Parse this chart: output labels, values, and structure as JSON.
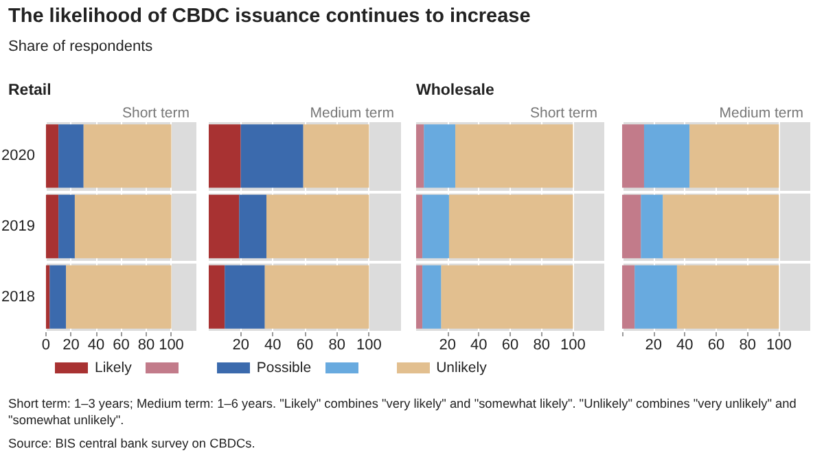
{
  "chart_data": [
    {
      "type": "other",
      "title": "The likelihood of CBDC issuance continues to increase",
      "subtitle": "Share of respondents",
      "annotations": [
        "Short term: 1–3 years; Medium term: 1–6 years. \"Likely\" combines \"very likely\" and \"somewhat likely\". \"Unlikely\" combines \"very unlikely\" and \"somewhat unlikely\".",
        "Source: BIS central bank survey on CBDCs."
      ]
    },
    {
      "type": "bar",
      "orientation": "horizontal",
      "stacked": true,
      "title": "Retail",
      "subtitle": "Short term",
      "categories": [
        "2020",
        "2019",
        "2018"
      ],
      "xlim": [
        0,
        120
      ],
      "xticks": [
        0,
        20,
        40,
        60,
        80,
        100
      ],
      "grid": true,
      "legend": "bottom",
      "series": [
        {
          "name": "Likely",
          "color": "#a83232",
          "values": [
            10,
            10,
            3
          ]
        },
        {
          "name": "Possible",
          "color": "#3b6aad",
          "values": [
            20,
            13,
            13
          ]
        },
        {
          "name": "Unlikely",
          "color": "#e2bf8f",
          "values": [
            70,
            77,
            84
          ]
        }
      ]
    },
    {
      "type": "bar",
      "orientation": "horizontal",
      "stacked": true,
      "subtitle": "Medium term",
      "categories": [
        "2020",
        "2019",
        "2018"
      ],
      "tick_labels": "x",
      "xlim": [
        0,
        120
      ],
      "xticks": [
        20,
        40,
        60,
        80,
        100
      ],
      "grid": true,
      "legend": "bottom",
      "series": [
        {
          "color": "#a83232",
          "values": [
            20,
            19,
            10
          ]
        },
        {
          "color": "#3b6aad",
          "values": [
            39,
            17,
            25
          ]
        },
        {
          "color": "#e2bf8f",
          "values": [
            41,
            64,
            65
          ]
        }
      ]
    },
    {
      "type": "bar",
      "orientation": "horizontal",
      "stacked": true,
      "title": "Wholesale",
      "subtitle": "Short term",
      "categories": [
        "2020",
        "2019",
        "2018"
      ],
      "tick_labels": "x",
      "xlim": [
        0,
        120
      ],
      "xticks": [
        20,
        40,
        60,
        80,
        100
      ],
      "grid": true,
      "legend": "bottom",
      "series": [
        {
          "color": "#c27b8a",
          "values": [
            5,
            4,
            4
          ]
        },
        {
          "color": "#68aadf",
          "values": [
            20,
            17,
            12
          ]
        },
        {
          "color": "#e2bf8f",
          "values": [
            75,
            79,
            84
          ]
        }
      ]
    },
    {
      "type": "bar",
      "orientation": "horizontal",
      "stacked": true,
      "subtitle": "Medium term",
      "categories": [
        "2020",
        "2019",
        "2018"
      ],
      "tick_labels": "x",
      "xlim": [
        0,
        120
      ],
      "xticks": [
        {
          "value": 0,
          "label": null
        },
        20,
        40,
        60,
        80,
        100
      ],
      "grid": true,
      "legend": "bottom",
      "series": [
        {
          "color": "#c27b8a",
          "values": [
            14,
            12,
            8
          ]
        },
        {
          "color": "#68aadf",
          "values": [
            29,
            14,
            27
          ]
        },
        {
          "color": "#e2bf8f",
          "values": [
            57,
            74,
            65
          ]
        }
      ]
    }
  ]
}
